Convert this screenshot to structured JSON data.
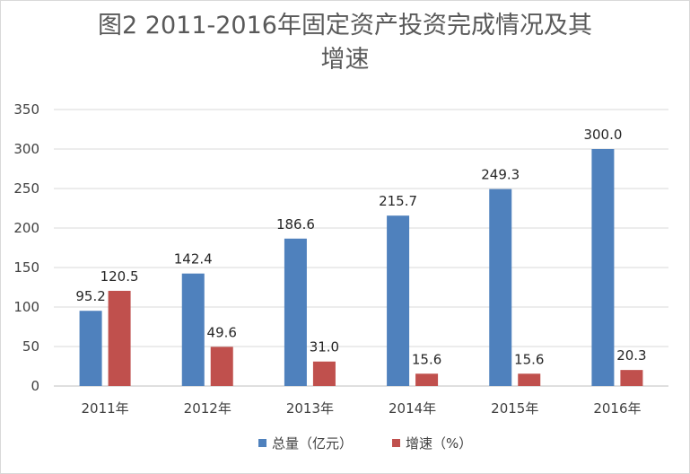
{
  "chart_data": {
    "type": "bar",
    "title_lines": [
      "图2  2011-2016年固定资产投资完成情况及其",
      "增速"
    ],
    "categories": [
      "2011年",
      "2012年",
      "2013年",
      "2014年",
      "2015年",
      "2016年"
    ],
    "series": [
      {
        "name": "总量（亿元）",
        "color": "#4f81bd",
        "values": [
          95.2,
          142.4,
          186.6,
          215.7,
          249.3,
          300.0
        ],
        "labels": [
          "95.2",
          "142.4",
          "186.6",
          "215.7",
          "249.3",
          "300.0"
        ]
      },
      {
        "name": "增速（%）",
        "color": "#c0504d",
        "values": [
          120.5,
          49.6,
          31.0,
          15.6,
          15.6,
          20.3
        ],
        "labels": [
          "120.5",
          "49.6",
          "31.0",
          "15.6",
          "15.6",
          "20.3"
        ]
      }
    ],
    "yticks": [
      "0",
      "50",
      "100",
      "150",
      "200",
      "250",
      "300",
      "350"
    ],
    "ylim": [
      0,
      350
    ],
    "grid": true,
    "legend_position": "bottom"
  }
}
